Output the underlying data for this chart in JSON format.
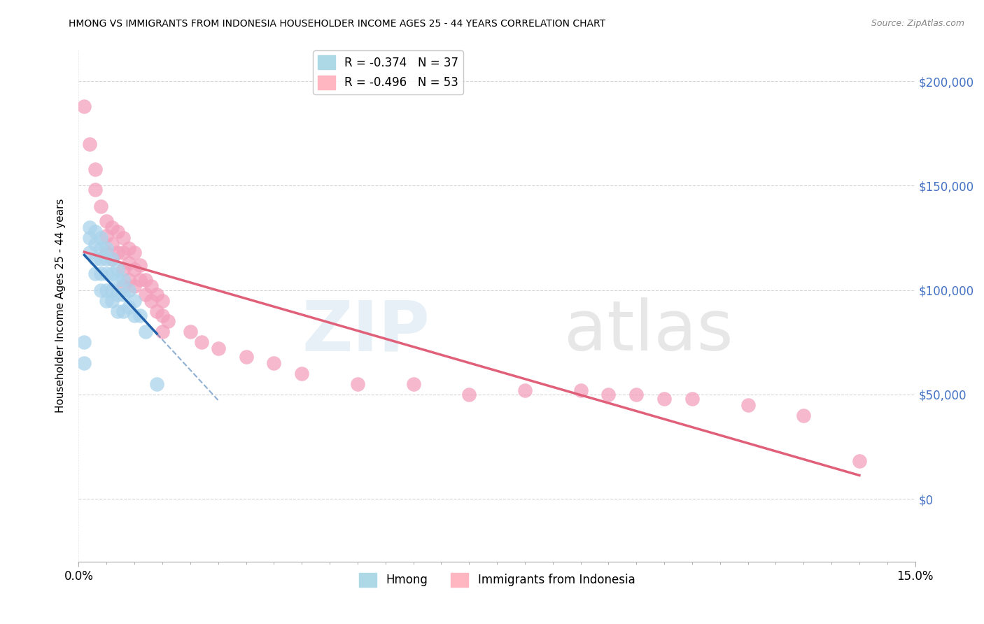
{
  "title": "HMONG VS IMMIGRANTS FROM INDONESIA HOUSEHOLDER INCOME AGES 25 - 44 YEARS CORRELATION CHART",
  "source": "Source: ZipAtlas.com",
  "ylabel": "Householder Income Ages 25 - 44 years",
  "xlim": [
    0.0,
    0.15
  ],
  "ylim": [
    -30000,
    215000
  ],
  "yticks": [
    0,
    50000,
    100000,
    150000,
    200000
  ],
  "ytick_labels_right": [
    "$0",
    "$50,000",
    "$100,000",
    "$150,000",
    "$200,000"
  ],
  "xtick_labels": [
    "0.0%",
    "15.0%"
  ],
  "xtick_pos": [
    0.0,
    0.15
  ],
  "watermark_zip": "ZIP",
  "watermark_atlas": "atlas",
  "legend_entries": [
    {
      "label": "R = -0.374   N = 37",
      "color": "#add8e6"
    },
    {
      "label": "R = -0.496   N = 53",
      "color": "#ffb6c1"
    }
  ],
  "legend_names": [
    "Hmong",
    "Immigrants from Indonesia"
  ],
  "hmong_color": "#aad4eb",
  "indonesia_color": "#f4a0bc",
  "hmong_line_color": "#2060a8",
  "indonesia_line_color": "#e0607a",
  "background_color": "#ffffff",
  "grid_color": "#cccccc",
  "hmong_x": [
    0.001,
    0.001,
    0.002,
    0.002,
    0.002,
    0.003,
    0.003,
    0.003,
    0.003,
    0.004,
    0.004,
    0.004,
    0.004,
    0.004,
    0.005,
    0.005,
    0.005,
    0.005,
    0.005,
    0.006,
    0.006,
    0.006,
    0.006,
    0.007,
    0.007,
    0.007,
    0.007,
    0.008,
    0.008,
    0.008,
    0.009,
    0.009,
    0.01,
    0.01,
    0.011,
    0.012,
    0.014
  ],
  "hmong_y": [
    75000,
    65000,
    130000,
    125000,
    118000,
    128000,
    122000,
    115000,
    108000,
    125000,
    120000,
    115000,
    108000,
    100000,
    120000,
    115000,
    108000,
    100000,
    95000,
    115000,
    108000,
    100000,
    95000,
    110000,
    105000,
    98000,
    90000,
    105000,
    98000,
    90000,
    100000,
    92000,
    95000,
    88000,
    88000,
    80000,
    55000
  ],
  "indonesia_x": [
    0.001,
    0.002,
    0.003,
    0.003,
    0.004,
    0.005,
    0.005,
    0.005,
    0.006,
    0.006,
    0.006,
    0.007,
    0.007,
    0.008,
    0.008,
    0.008,
    0.008,
    0.009,
    0.009,
    0.009,
    0.01,
    0.01,
    0.01,
    0.011,
    0.011,
    0.012,
    0.012,
    0.013,
    0.013,
    0.014,
    0.014,
    0.015,
    0.015,
    0.015,
    0.016,
    0.02,
    0.022,
    0.025,
    0.03,
    0.035,
    0.04,
    0.05,
    0.06,
    0.07,
    0.08,
    0.09,
    0.095,
    0.1,
    0.105,
    0.11,
    0.12,
    0.13,
    0.14
  ],
  "indonesia_y": [
    188000,
    170000,
    158000,
    148000,
    140000,
    133000,
    126000,
    118000,
    130000,
    122000,
    115000,
    128000,
    118000,
    125000,
    118000,
    110000,
    102000,
    120000,
    113000,
    105000,
    118000,
    110000,
    102000,
    112000,
    105000,
    105000,
    98000,
    102000,
    95000,
    98000,
    90000,
    95000,
    88000,
    80000,
    85000,
    80000,
    75000,
    72000,
    68000,
    65000,
    60000,
    55000,
    55000,
    50000,
    52000,
    52000,
    50000,
    50000,
    48000,
    48000,
    45000,
    40000,
    18000
  ]
}
